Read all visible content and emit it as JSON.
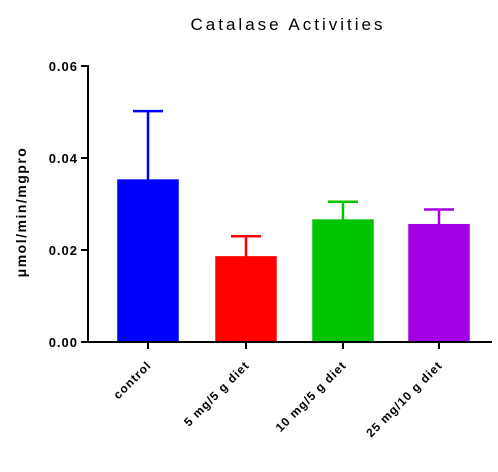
{
  "chart_data": {
    "type": "bar",
    "title": "Catalase Activities",
    "xlabel": "",
    "ylabel": "μmol/min/mgpro",
    "categories": [
      "control",
      "5 mg/5 g diet",
      "10 mg/5 g diet",
      "25 mg/10 g diet"
    ],
    "values": [
      0.0352,
      0.0185,
      0.0265,
      0.0255
    ],
    "errors": [
      0.015,
      0.0045,
      0.004,
      0.0033
    ],
    "colors": [
      "#0000ff",
      "#ff0000",
      "#00c400",
      "#a300e6"
    ],
    "ylim": [
      0,
      0.06
    ],
    "yticks": [
      "0.00",
      "0.02",
      "0.04",
      "0.06"
    ],
    "grid": false,
    "legend": "none"
  }
}
